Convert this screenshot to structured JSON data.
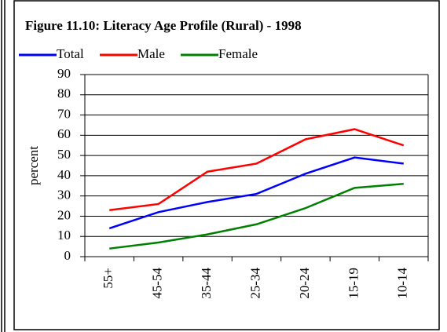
{
  "chart_data": {
    "type": "line",
    "title": "Figure 11.10: Literacy Age Profile (Rural) - 1998",
    "y_label": "percent",
    "categories": [
      "55+",
      "45-54",
      "35-44",
      "25-34",
      "20-24",
      "15-19",
      "10-14"
    ],
    "series": [
      {
        "name": "Total",
        "color": "#0000ff",
        "values": [
          14,
          22,
          27,
          31,
          41,
          49,
          46
        ]
      },
      {
        "name": "Male",
        "color": "#ff0000",
        "values": [
          23,
          26,
          42,
          46,
          58,
          63,
          55
        ]
      },
      {
        "name": "Female",
        "color": "#008000",
        "values": [
          4,
          7,
          11,
          16,
          24,
          34,
          36
        ]
      }
    ],
    "ylim": [
      0,
      90
    ],
    "yticks": [
      0,
      10,
      20,
      30,
      40,
      50,
      60,
      70,
      80,
      90
    ],
    "grid": true,
    "legend": "top-left"
  }
}
